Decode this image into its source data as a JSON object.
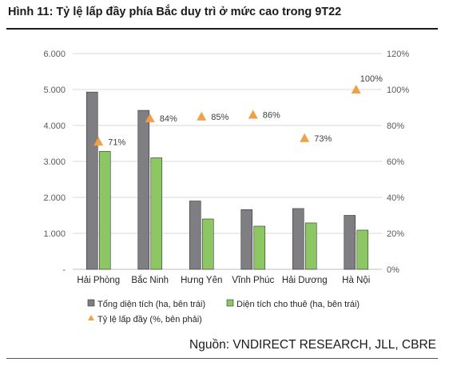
{
  "figure": {
    "title": "Hình 11: Tỷ lệ lấp đầy phía Bắc duy trì ở mức cao trong 9T22",
    "source": "Nguồn: VNDIRECT RESEARCH, JLL, CBRE"
  },
  "chart_data": {
    "type": "bar",
    "categories": [
      "Hải Phòng",
      "Bắc Ninh",
      "Hưng Yên",
      "Vĩnh Phúc",
      "Hải Dương",
      "Hà Nội"
    ],
    "series": [
      {
        "name": "Tổng diện tích (ha, bên trái)",
        "type": "bar",
        "axis": "left",
        "color": "#7f7f83",
        "values": [
          4930,
          4420,
          1900,
          1660,
          1690,
          1500
        ]
      },
      {
        "name": "Diện tích cho thuê (ha, bên trái)",
        "type": "bar",
        "axis": "left",
        "color": "#8dc764",
        "values": [
          3280,
          3100,
          1400,
          1200,
          1290,
          1090
        ]
      },
      {
        "name": "Tỷ lệ lấp đầy (%, bên phải)",
        "type": "scatter",
        "axis": "right",
        "marker": "triangle",
        "color": "#f0a046",
        "values": [
          71,
          84,
          85,
          86,
          73,
          100
        ],
        "labels": [
          "71%",
          "84%",
          "85%",
          "86%",
          "73%",
          "100%"
        ]
      }
    ],
    "y_left": {
      "ylim": [
        0,
        6000
      ],
      "ticks": [
        0,
        1000,
        2000,
        3000,
        4000,
        5000,
        6000
      ],
      "tick_labels": [
        "-",
        "1.000",
        "2.000",
        "3.000",
        "4.000",
        "5.000",
        "6.000"
      ]
    },
    "y_right": {
      "ylim": [
        0,
        120
      ],
      "ticks": [
        0,
        20,
        40,
        60,
        80,
        100,
        120
      ],
      "tick_labels": [
        "0%",
        "20%",
        "40%",
        "60%",
        "80%",
        "100%",
        "120%"
      ]
    },
    "grid": true,
    "legend": "bottom"
  }
}
